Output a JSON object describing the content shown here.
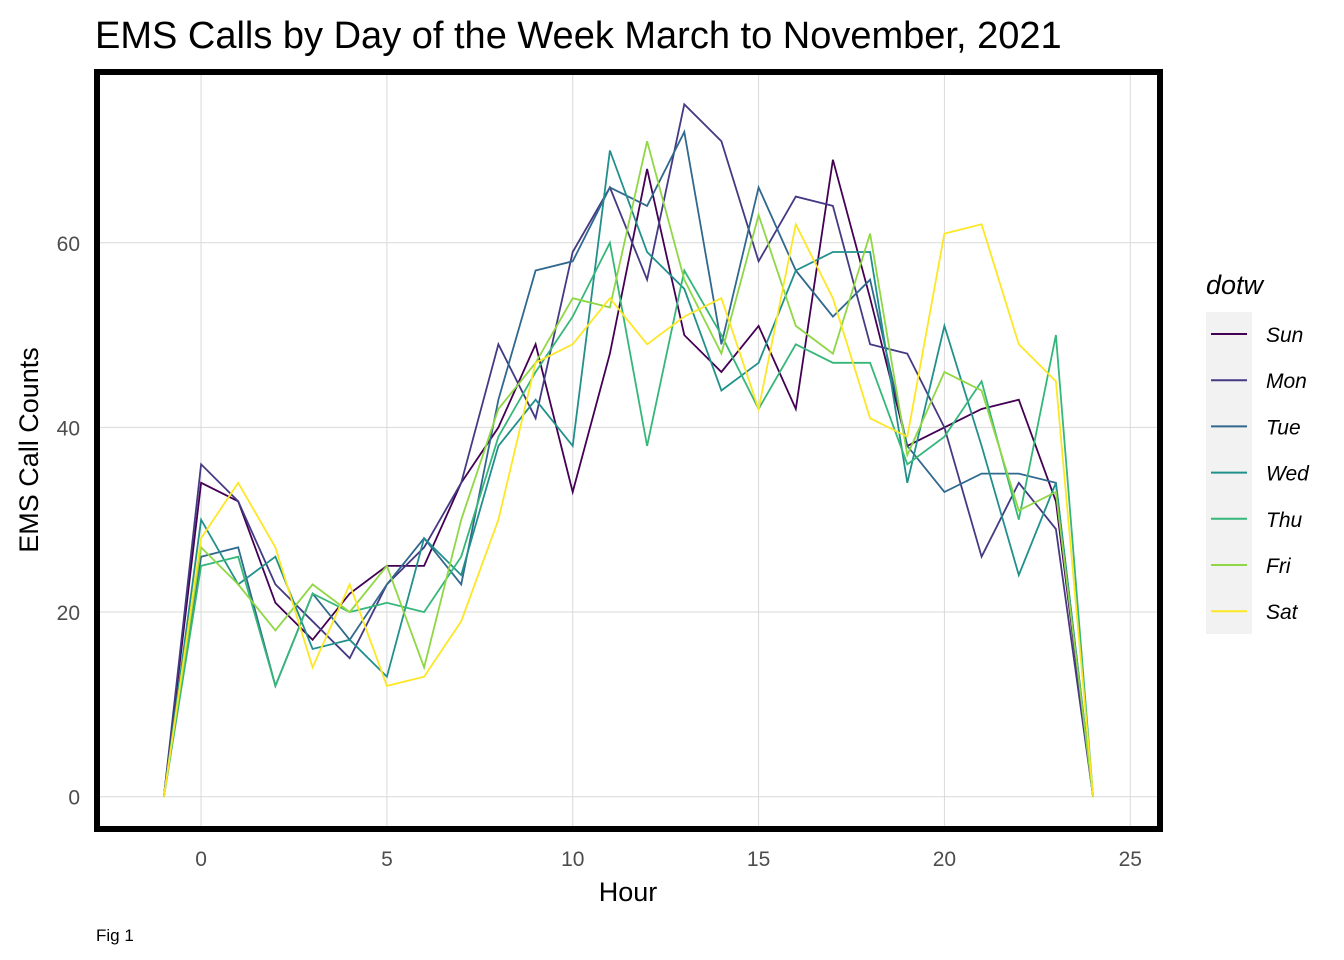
{
  "chart_data": {
    "type": "line",
    "title": "EMS Calls by Day of the Week March to November, 2021",
    "xlabel": "Hour",
    "ylabel": "EMS Call Counts",
    "caption": "Fig 1",
    "legend_title": "dotw",
    "legend_position": "right",
    "grid": true,
    "xlim": [
      -2.8,
      25.8
    ],
    "ylim": [
      -3.5,
      78.5
    ],
    "x_ticks": [
      0,
      5,
      10,
      15,
      20,
      25
    ],
    "y_ticks": [
      0,
      20,
      40,
      60
    ],
    "x": [
      -1,
      0,
      1,
      2,
      3,
      4,
      5,
      6,
      7,
      8,
      9,
      10,
      11,
      12,
      13,
      14,
      15,
      16,
      17,
      18,
      19,
      20,
      21,
      22,
      23,
      24
    ],
    "series": [
      {
        "name": "Sun",
        "color": "#440154",
        "values": [
          0,
          34,
          32,
          21,
          17,
          22,
          25,
          25,
          34,
          40,
          49,
          33,
          48,
          68,
          50,
          46,
          51,
          42,
          69,
          54,
          38,
          40,
          42,
          43,
          32,
          0
        ]
      },
      {
        "name": "Mon",
        "color": "#443A83",
        "values": [
          0,
          36,
          32,
          23,
          19,
          15,
          23,
          27,
          34,
          49,
          41,
          59,
          66,
          56,
          75,
          71,
          58,
          65,
          64,
          49,
          48,
          40,
          26,
          34,
          29,
          0
        ]
      },
      {
        "name": "Tue",
        "color": "#31688E",
        "values": [
          0,
          26,
          27,
          12,
          22,
          17,
          23,
          28,
          23,
          43,
          57,
          58,
          66,
          64,
          72,
          49,
          66,
          57,
          52,
          56,
          38,
          33,
          35,
          35,
          34,
          0
        ]
      },
      {
        "name": "Wed",
        "color": "#21908C",
        "values": [
          0,
          30,
          23,
          26,
          16,
          17,
          13,
          28,
          24,
          38,
          43,
          38,
          70,
          59,
          55,
          44,
          47,
          57,
          59,
          59,
          34,
          51,
          38,
          24,
          34,
          0
        ]
      },
      {
        "name": "Thu",
        "color": "#35B779",
        "values": [
          0,
          25,
          26,
          12,
          22,
          20,
          21,
          20,
          26,
          39,
          46,
          52,
          60,
          38,
          57,
          50,
          42,
          49,
          47,
          47,
          36,
          39,
          45,
          30,
          50,
          0
        ]
      },
      {
        "name": "Fri",
        "color": "#8FD744",
        "values": [
          0,
          27,
          23,
          18,
          23,
          20,
          25,
          14,
          30,
          42,
          47,
          54,
          53,
          71,
          56,
          48,
          63,
          51,
          48,
          61,
          37,
          46,
          44,
          31,
          33,
          0
        ]
      },
      {
        "name": "Sat",
        "color": "#FDE725",
        "values": [
          0,
          28,
          34,
          27,
          14,
          23,
          12,
          13,
          19,
          30,
          47,
          49,
          54,
          49,
          52,
          54,
          42,
          62,
          54,
          41,
          39,
          61,
          62,
          49,
          45,
          0
        ]
      }
    ]
  }
}
